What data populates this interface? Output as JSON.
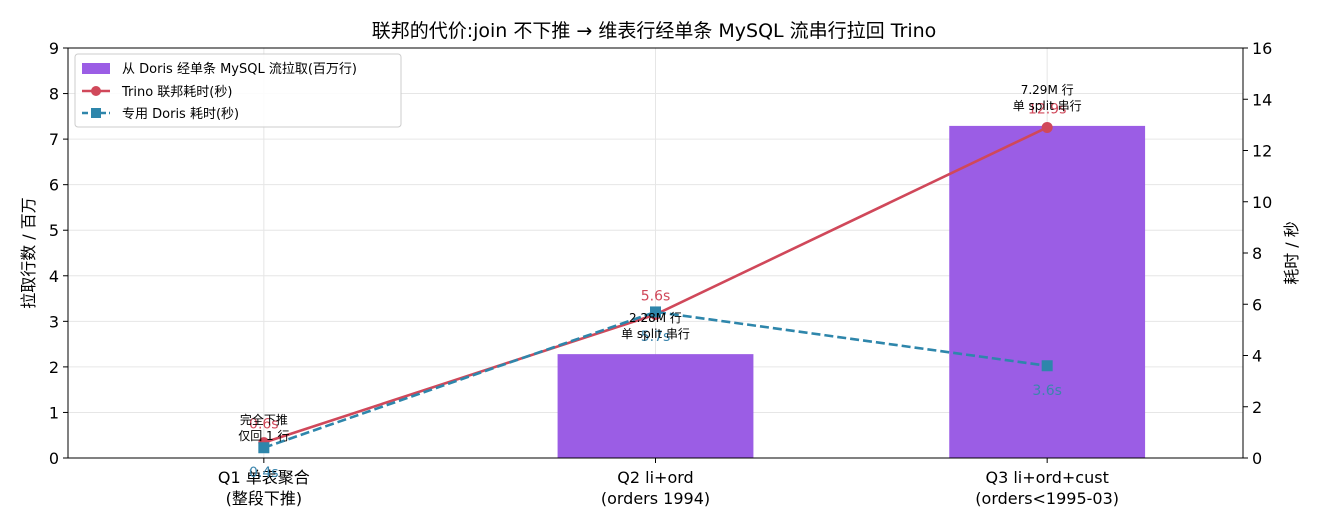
{
  "chart_data": {
    "type": "bar+line",
    "title": "联邦的代价:join 不下推 → 维表行经单条 MySQL 流串行拉回 Trino",
    "categories": [
      [
        "Q1 单表聚合",
        "(整段下推)"
      ],
      [
        "Q2 li+ord",
        "(orders 1994)"
      ],
      [
        "Q3 li+ord+cust",
        "(orders<1995-03)"
      ]
    ],
    "ylabel_left": "拉取行数 / 百万",
    "ylabel_right": "耗时 / 秒",
    "ylim_left": [
      0,
      9
    ],
    "ylim_right": [
      0,
      16
    ],
    "yticks_left": [
      "0",
      "1",
      "2",
      "3",
      "4",
      "5",
      "6",
      "7",
      "8",
      "9"
    ],
    "yticks_right": [
      "0",
      "2",
      "4",
      "6",
      "8",
      "10",
      "12",
      "14",
      "16"
    ],
    "grid": true,
    "legend_position": "top-left",
    "bars": {
      "name": "从 Doris 经单条 MySQL 流拉取(百万行)",
      "color": "#9b5de5",
      "values": [
        0.0,
        2.28,
        7.29
      ],
      "annotations": [
        [
          "完全下推",
          "仅回 1 行"
        ],
        [
          "2.28M 行",
          "单 split 串行"
        ],
        [
          "7.29M 行",
          "单 split 串行"
        ]
      ]
    },
    "lines": [
      {
        "name": "Trino 联邦耗时(秒)",
        "color": "#d0485a",
        "marker": "circle",
        "style": "solid",
        "values": [
          0.6,
          5.6,
          12.9
        ],
        "labels": [
          "0.6s",
          "5.6s",
          "12.9s"
        ]
      },
      {
        "name": "专用 Doris 耗时(秒)",
        "color": "#2e86ab",
        "marker": "square",
        "style": "dashed",
        "values": [
          0.4,
          5.7,
          3.6
        ],
        "labels": [
          "0.4s",
          "5.7s",
          "3.6s"
        ]
      }
    ]
  }
}
